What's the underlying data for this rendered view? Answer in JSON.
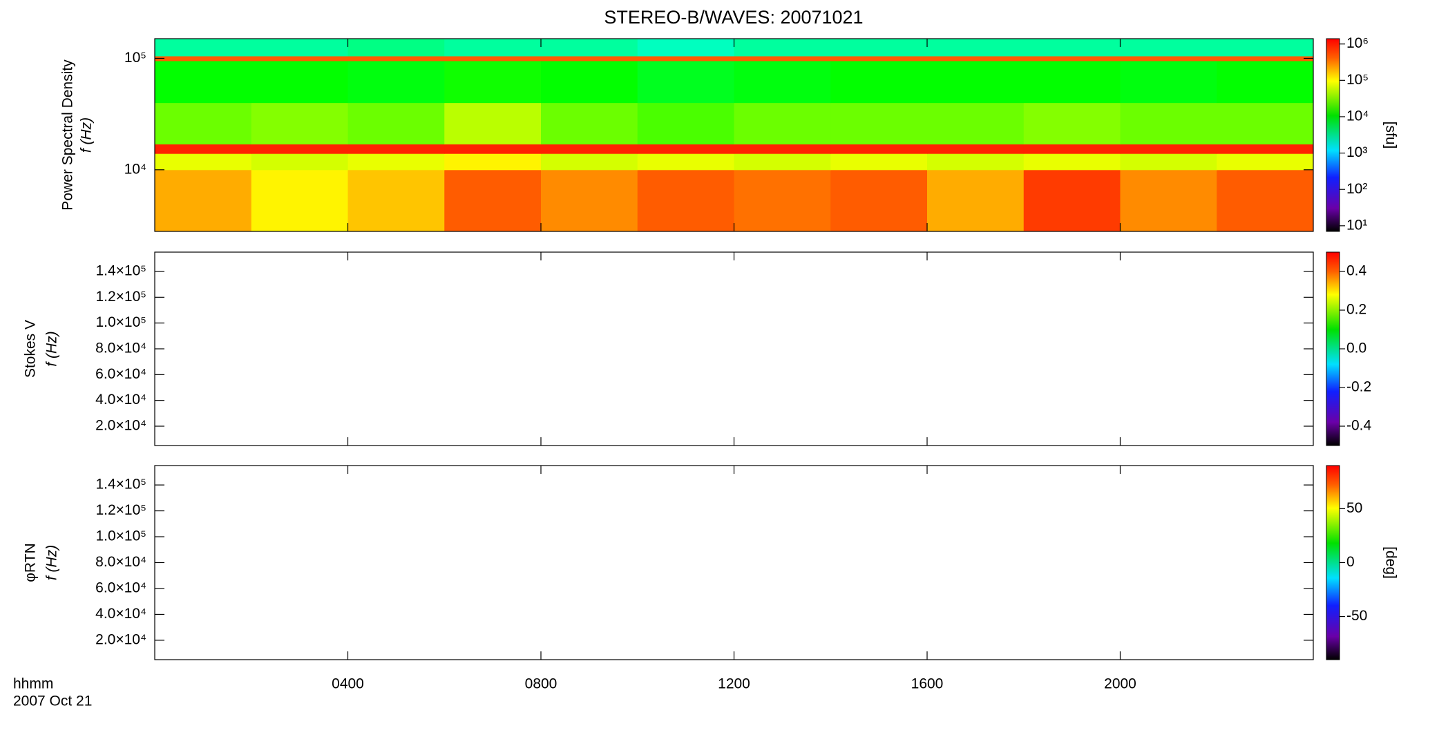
{
  "chart_data": [
    {
      "type": "heatmap",
      "title": "STEREO-B/WAVES: 20071021",
      "ylabel": [
        "Power Spectral Density",
        "f (Hz)"
      ],
      "zlabel": "[sfu]",
      "xlim": [
        0,
        24
      ],
      "xticks": [
        4,
        8,
        12,
        16,
        20
      ],
      "ylog": true,
      "ylim": [
        2800,
        150000
      ],
      "yticks": [
        {
          "value": 10000,
          "label": "10⁴"
        },
        {
          "value": 100000,
          "label": "10⁵"
        }
      ],
      "zlog": true,
      "zlim": [
        7,
        1400000
      ],
      "zticks": [
        {
          "value": 10,
          "label": "10¹"
        },
        {
          "value": 100,
          "label": "10²"
        },
        {
          "value": 1000,
          "label": "10³"
        },
        {
          "value": 10000,
          "label": "10⁴"
        },
        {
          "value": 100000,
          "label": "10⁵"
        },
        {
          "value": 1000000,
          "label": "10⁶"
        }
      ],
      "x_edges": [
        0,
        2,
        4,
        6,
        8,
        10,
        12,
        14,
        16,
        18,
        20,
        22,
        24
      ],
      "y_edges": [
        2800,
        10000,
        14000,
        17000,
        40000,
        95000,
        105000,
        150000
      ],
      "z": [
        [
          150000,
          80000,
          120000,
          300000,
          200000,
          300000,
          250000,
          300000,
          150000,
          400000,
          200000,
          300000
        ],
        [
          60000,
          50000,
          60000,
          80000,
          50000,
          60000,
          50000,
          60000,
          50000,
          60000,
          50000,
          60000
        ],
        [
          500000,
          500000,
          500000,
          500000,
          500000,
          500000,
          500000,
          500000,
          500000,
          500000,
          500000,
          500000
        ],
        [
          20000,
          25000,
          20000,
          40000,
          20000,
          15000,
          20000,
          20000,
          20000,
          25000,
          20000,
          20000
        ],
        [
          8000,
          8000,
          7000,
          9000,
          8000,
          6000,
          7000,
          8000,
          8000,
          8000,
          7000,
          8000
        ],
        [
          300000,
          300000,
          300000,
          300000,
          300000,
          300000,
          300000,
          300000,
          300000,
          300000,
          300000,
          300000
        ],
        [
          2000,
          2000,
          2500,
          2000,
          2000,
          1500,
          2000,
          2000,
          2000,
          2000,
          2000,
          2000
        ]
      ]
    },
    {
      "type": "heatmap",
      "ylabel": [
        "Stokes V",
        "f (Hz)"
      ],
      "xlim": [
        0,
        24
      ],
      "xticks": [
        4,
        8,
        12,
        16,
        20
      ],
      "ylim": [
        5000,
        155000
      ],
      "yticks": [
        {
          "value": 20000,
          "label": "2.0×10⁴"
        },
        {
          "value": 40000,
          "label": "4.0×10⁴"
        },
        {
          "value": 60000,
          "label": "6.0×10⁴"
        },
        {
          "value": 80000,
          "label": "8.0×10⁴"
        },
        {
          "value": 100000,
          "label": "1.0×10⁵"
        },
        {
          "value": 120000,
          "label": "1.2×10⁵"
        },
        {
          "value": 140000,
          "label": "1.4×10⁵"
        }
      ],
      "zlim": [
        -0.5,
        0.5
      ],
      "zticks": [
        -0.4,
        -0.2,
        {
          "value": 0,
          "label": "0.0"
        },
        0.2,
        0.4
      ]
    },
    {
      "type": "heatmap",
      "ylabel": [
        "φRTN",
        "f (Hz)"
      ],
      "zlabel": "[deg]",
      "x_label": "hhmm",
      "date_label": "2007 Oct 21",
      "xlim": [
        0,
        24
      ],
      "xticks": [
        {
          "value": 4,
          "label": "0400"
        },
        {
          "value": 8,
          "label": "0800"
        },
        {
          "value": 12,
          "label": "1200"
        },
        {
          "value": 16,
          "label": "1600"
        },
        {
          "value": 20,
          "label": "2000"
        }
      ],
      "ylim": [
        5000,
        155000
      ],
      "yticks": [
        {
          "value": 20000,
          "label": "2.0×10⁴"
        },
        {
          "value": 40000,
          "label": "4.0×10⁴"
        },
        {
          "value": 60000,
          "label": "6.0×10⁴"
        },
        {
          "value": 80000,
          "label": "8.0×10⁴"
        },
        {
          "value": 100000,
          "label": "1.0×10⁵"
        },
        {
          "value": 120000,
          "label": "1.2×10⁵"
        },
        {
          "value": 140000,
          "label": "1.4×10⁵"
        }
      ],
      "zlim": [
        -90,
        90
      ],
      "zticks": [
        -50,
        0,
        50
      ]
    }
  ]
}
